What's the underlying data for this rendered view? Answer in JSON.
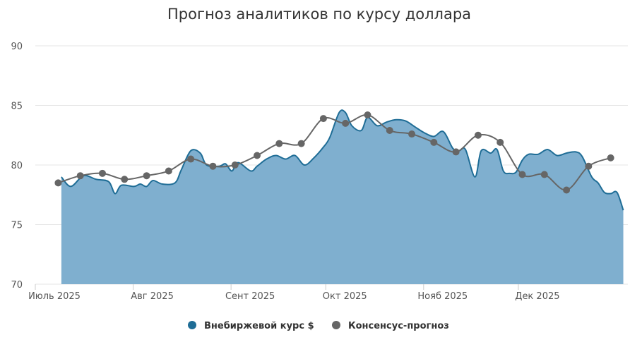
{
  "chart_data": {
    "type": "area",
    "title": "Прогноз аналитиков по курсу доллара",
    "xlabel": "",
    "ylabel": "",
    "ylim": [
      70,
      90
    ],
    "yticks": [
      70,
      75,
      80,
      85,
      90
    ],
    "x_date_range": [
      "2025-07-01",
      "2025-12-31"
    ],
    "grid": true,
    "legend_position": "bottom-center",
    "x_ticks": [
      {
        "label": "Июль 2025",
        "date": "2025-07-01"
      },
      {
        "label": "Авг 2025",
        "date": "2025-08-01"
      },
      {
        "label": "Сент 2025",
        "date": "2025-09-01"
      },
      {
        "label": "Окт 2025",
        "date": "2025-10-01"
      },
      {
        "label": "Нояб 2025",
        "date": "2025-11-01"
      },
      {
        "label": "Дек 2025",
        "date": "2025-12-01"
      }
    ],
    "series": [
      {
        "name": "Внебиржевой курс $",
        "kind": "area",
        "color": "#1f6d96",
        "fill": "#7fafcf",
        "points": [
          [
            "2025-07-05",
            79.0
          ],
          [
            "2025-07-08",
            78.2
          ],
          [
            "2025-07-12",
            79.1
          ],
          [
            "2025-07-16",
            78.8
          ],
          [
            "2025-07-20",
            78.6
          ],
          [
            "2025-07-22",
            77.6
          ],
          [
            "2025-07-24",
            78.3
          ],
          [
            "2025-07-28",
            78.2
          ],
          [
            "2025-07-30",
            78.4
          ],
          [
            "2025-08-01",
            78.2
          ],
          [
            "2025-08-03",
            78.7
          ],
          [
            "2025-08-06",
            78.4
          ],
          [
            "2025-08-10",
            78.5
          ],
          [
            "2025-08-12",
            79.6
          ],
          [
            "2025-08-15",
            81.2
          ],
          [
            "2025-08-18",
            81.0
          ],
          [
            "2025-08-20",
            80.0
          ],
          [
            "2025-08-24",
            79.9
          ],
          [
            "2025-08-26",
            80.1
          ],
          [
            "2025-08-28",
            79.5
          ],
          [
            "2025-08-30",
            80.2
          ],
          [
            "2025-09-03",
            79.5
          ],
          [
            "2025-09-05",
            79.9
          ],
          [
            "2025-09-08",
            80.5
          ],
          [
            "2025-09-11",
            80.8
          ],
          [
            "2025-09-14",
            80.5
          ],
          [
            "2025-09-17",
            80.8
          ],
          [
            "2025-09-20",
            80.0
          ],
          [
            "2025-09-23",
            80.6
          ],
          [
            "2025-09-26",
            81.5
          ],
          [
            "2025-09-28",
            82.3
          ],
          [
            "2025-10-01",
            84.4
          ],
          [
            "2025-10-03",
            84.4
          ],
          [
            "2025-10-05",
            83.3
          ],
          [
            "2025-10-08",
            82.9
          ],
          [
            "2025-10-10",
            84.0
          ],
          [
            "2025-10-13",
            83.3
          ],
          [
            "2025-10-16",
            83.6
          ],
          [
            "2025-10-19",
            83.8
          ],
          [
            "2025-10-22",
            83.7
          ],
          [
            "2025-10-25",
            83.2
          ],
          [
            "2025-10-28",
            82.7
          ],
          [
            "2025-10-31",
            82.4
          ],
          [
            "2025-11-03",
            82.8
          ],
          [
            "2025-11-06",
            81.4
          ],
          [
            "2025-11-08",
            81.2
          ],
          [
            "2025-11-10",
            81.3
          ],
          [
            "2025-11-13",
            79.0
          ],
          [
            "2025-11-15",
            81.2
          ],
          [
            "2025-11-18",
            81.0
          ],
          [
            "2025-11-20",
            81.3
          ],
          [
            "2025-11-22",
            79.5
          ],
          [
            "2025-11-24",
            79.3
          ],
          [
            "2025-11-26",
            79.4
          ],
          [
            "2025-11-28",
            80.4
          ],
          [
            "2025-11-30",
            80.9
          ],
          [
            "2025-12-03",
            80.9
          ],
          [
            "2025-12-06",
            81.3
          ],
          [
            "2025-12-09",
            80.8
          ],
          [
            "2025-12-12",
            81.0
          ],
          [
            "2025-12-15",
            81.1
          ],
          [
            "2025-12-17",
            80.7
          ],
          [
            "2025-12-20",
            79.0
          ],
          [
            "2025-12-22",
            78.5
          ],
          [
            "2025-12-24",
            77.7
          ],
          [
            "2025-12-26",
            77.6
          ],
          [
            "2025-12-28",
            77.7
          ],
          [
            "2025-12-30",
            76.2
          ]
        ]
      },
      {
        "name": "Консенсус-прогноз",
        "kind": "line",
        "color": "#666666",
        "points": [
          [
            "2025-07-04",
            78.5
          ],
          [
            "2025-07-11",
            79.1
          ],
          [
            "2025-07-18",
            79.3
          ],
          [
            "2025-07-25",
            78.8
          ],
          [
            "2025-08-01",
            79.1
          ],
          [
            "2025-08-08",
            79.5
          ],
          [
            "2025-08-15",
            80.5
          ],
          [
            "2025-08-22",
            79.9
          ],
          [
            "2025-08-29",
            80.0
          ],
          [
            "2025-09-05",
            80.8
          ],
          [
            "2025-09-12",
            81.8
          ],
          [
            "2025-09-19",
            81.8
          ],
          [
            "2025-09-26",
            83.9
          ],
          [
            "2025-10-03",
            83.5
          ],
          [
            "2025-10-10",
            84.2
          ],
          [
            "2025-10-17",
            82.9
          ],
          [
            "2025-10-24",
            82.6
          ],
          [
            "2025-10-31",
            81.9
          ],
          [
            "2025-11-07",
            81.1
          ],
          [
            "2025-11-14",
            82.5
          ],
          [
            "2025-11-21",
            81.9
          ],
          [
            "2025-11-28",
            79.2
          ],
          [
            "2025-12-05",
            79.2
          ],
          [
            "2025-12-12",
            77.9
          ],
          [
            "2025-12-19",
            79.9
          ],
          [
            "2025-12-26",
            80.6
          ]
        ]
      }
    ]
  }
}
